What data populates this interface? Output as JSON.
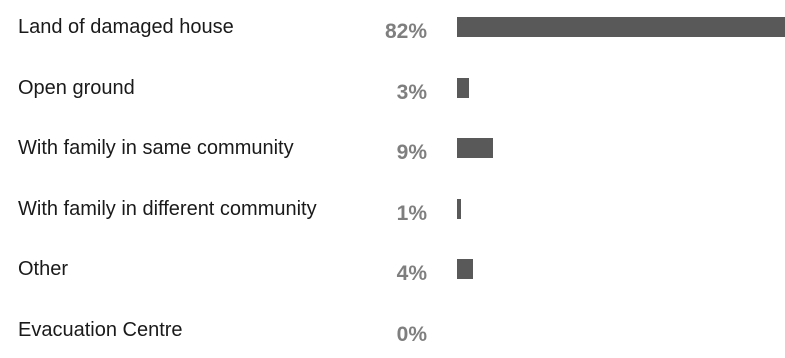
{
  "chart_data": {
    "type": "bar",
    "orientation": "horizontal",
    "categories": [
      "Land of damaged house",
      "Open ground",
      "With family in same community",
      "With family in different community",
      "Other",
      "Evacuation Centre"
    ],
    "values": [
      82,
      3,
      9,
      1,
      4,
      0
    ],
    "value_labels": [
      "82%",
      "3%",
      "9%",
      "1%",
      "4%",
      "0%"
    ],
    "title": "",
    "xlabel": "",
    "ylabel": "",
    "xlim": [
      0,
      82
    ],
    "grid": false,
    "legend": "none",
    "bar_color": "#595959",
    "value_label_color": "#7f7f7f"
  }
}
